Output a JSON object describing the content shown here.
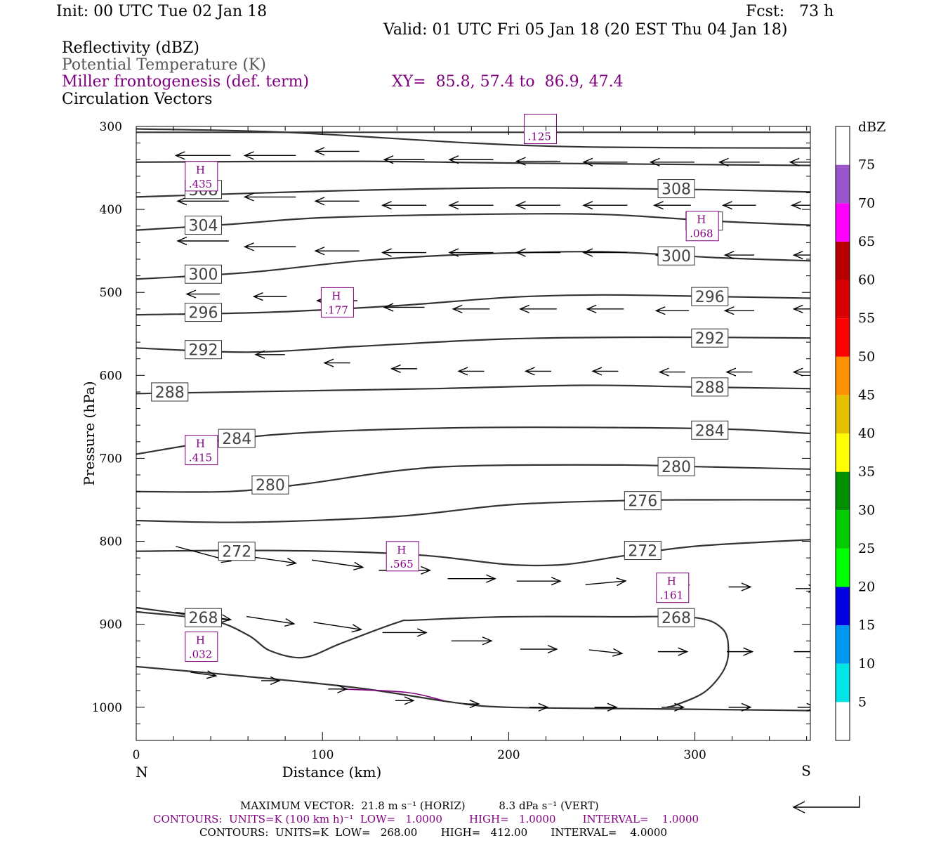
{
  "header": {
    "init": "Init: 00 UTC Tue 02 Jan 18",
    "fcst": "Fcst:   73 h",
    "valid": "Valid: 01 UTC Fri 05 Jan 18 (20 EST Thu 04 Jan 18)",
    "fields": [
      {
        "text": "Reflectivity (dBZ)",
        "color": "#000000"
      },
      {
        "text": "Potential Temperature (K)",
        "color": "#555555"
      },
      {
        "text": "Miller frontogenesis (def. term)",
        "color": "#800080"
      },
      {
        "text": "Circulation Vectors",
        "color": "#000000"
      }
    ],
    "xy": "XY=  85.8, 57.4 to  86.9, 47.4"
  },
  "chart_data": {
    "type": "cross-section",
    "xlabel": "Distance (km)",
    "ylabel": "Pressure (hPa)",
    "xlim": [
      0,
      362
    ],
    "ylim": [
      1040,
      300
    ],
    "xticks": [
      0,
      100,
      200,
      300
    ],
    "yticks": [
      300,
      400,
      500,
      600,
      700,
      800,
      900,
      1000
    ],
    "left_end_label": "N",
    "right_end_label": "S",
    "colorbar": {
      "title": "dBZ",
      "levels": [
        5,
        10,
        15,
        20,
        25,
        30,
        35,
        40,
        45,
        50,
        55,
        60,
        65,
        70,
        75
      ],
      "colors": [
        "#ffffff",
        "#00e5e5",
        "#0099f0",
        "#0000e0",
        "#00ff00",
        "#00cc00",
        "#009000",
        "#ffff00",
        "#e6c000",
        "#ff9000",
        "#ff0000",
        "#d80000",
        "#b80000",
        "#ff00ff",
        "#9955cc",
        "#ffffff"
      ]
    },
    "theta_contours": [
      {
        "label": "308",
        "points": [
          [
            0,
            385
          ],
          [
            100,
            378
          ],
          [
            200,
            374
          ],
          [
            300,
            376
          ],
          [
            362,
            379
          ]
        ],
        "labels": [
          [
            36,
            376
          ],
          [
            290,
            375
          ]
        ]
      },
      {
        "label": "304",
        "points": [
          [
            0,
            425
          ],
          [
            50,
            418
          ],
          [
            100,
            410
          ],
          [
            180,
            406
          ],
          [
            250,
            406
          ],
          [
            310,
            414
          ],
          [
            362,
            419
          ]
        ],
        "labels": [
          [
            36,
            419
          ],
          [
            305,
            414
          ]
        ]
      },
      {
        "label": "300",
        "points": [
          [
            0,
            484
          ],
          [
            60,
            476
          ],
          [
            120,
            462
          ],
          [
            180,
            454
          ],
          [
            250,
            451
          ],
          [
            310,
            458
          ],
          [
            362,
            462
          ]
        ],
        "labels": [
          [
            36,
            478
          ],
          [
            290,
            456
          ]
        ]
      },
      {
        "label": "296",
        "points": [
          [
            0,
            527
          ],
          [
            70,
            524
          ],
          [
            140,
            516
          ],
          [
            200,
            506
          ],
          [
            250,
            503
          ],
          [
            310,
            505
          ],
          [
            362,
            507
          ]
        ],
        "labels": [
          [
            36,
            524
          ],
          [
            308,
            505
          ]
        ]
      },
      {
        "label": "292",
        "points": [
          [
            0,
            567
          ],
          [
            60,
            572
          ],
          [
            120,
            565
          ],
          [
            200,
            556
          ],
          [
            280,
            554
          ],
          [
            362,
            555
          ]
        ],
        "labels": [
          [
            36,
            569
          ],
          [
            308,
            555
          ]
        ]
      },
      {
        "label": "288",
        "points": [
          [
            0,
            622
          ],
          [
            80,
            619
          ],
          [
            160,
            616
          ],
          [
            240,
            612
          ],
          [
            300,
            614
          ],
          [
            362,
            616
          ]
        ],
        "labels": [
          [
            18,
            620
          ],
          [
            308,
            614
          ]
        ]
      },
      {
        "label": "284",
        "points": [
          [
            0,
            695
          ],
          [
            50,
            677
          ],
          [
            100,
            668
          ],
          [
            180,
            663
          ],
          [
            260,
            663
          ],
          [
            320,
            665
          ],
          [
            362,
            670
          ]
        ],
        "labels": [
          [
            54,
            676
          ],
          [
            308,
            666
          ]
        ]
      },
      {
        "label": "280",
        "points": [
          [
            0,
            740
          ],
          [
            50,
            740
          ],
          [
            90,
            731
          ],
          [
            140,
            715
          ],
          [
            180,
            709
          ],
          [
            260,
            708
          ],
          [
            300,
            710
          ],
          [
            362,
            713
          ]
        ],
        "labels": [
          [
            72,
            732
          ],
          [
            290,
            710
          ]
        ]
      },
      {
        "label": "276",
        "points": [
          [
            0,
            775
          ],
          [
            60,
            777
          ],
          [
            140,
            770
          ],
          [
            200,
            756
          ],
          [
            260,
            751
          ],
          [
            300,
            750
          ],
          [
            362,
            750
          ]
        ],
        "labels": [
          [
            272,
            751
          ]
        ]
      },
      {
        "label": "272",
        "points": [
          [
            0,
            812
          ],
          [
            60,
            811
          ],
          [
            120,
            813
          ],
          [
            160,
            818
          ],
          [
            200,
            828
          ],
          [
            230,
            828
          ],
          [
            260,
            818
          ],
          [
            300,
            806
          ],
          [
            362,
            798
          ]
        ],
        "labels": [
          [
            54,
            812
          ],
          [
            272,
            811
          ]
        ]
      },
      {
        "label": "268",
        "points": [
          [
            0,
            885
          ],
          [
            40,
            895
          ],
          [
            60,
            913
          ],
          [
            72,
            932
          ],
          [
            90,
            940
          ],
          [
            110,
            923
          ],
          [
            140,
            898
          ],
          [
            150,
            895
          ],
          [
            200,
            891
          ],
          [
            260,
            891
          ],
          [
            300,
            892
          ],
          [
            315,
            906
          ],
          [
            318,
            933
          ],
          [
            315,
            957
          ],
          [
            305,
            982
          ],
          [
            290,
            997
          ],
          [
            285,
            1000
          ]
        ],
        "labels": [
          [
            36,
            892
          ],
          [
            290,
            892
          ]
        ]
      },
      {
        "label": "",
        "points": [
          [
            0,
            880
          ],
          [
            30,
            889
          ],
          [
            50,
            895
          ]
        ],
        "labels": []
      },
      {
        "label": "",
        "points": [
          [
            0,
            307
          ],
          [
            100,
            307
          ],
          [
            150,
            307
          ],
          [
            362,
            307
          ]
        ],
        "labels": []
      },
      {
        "label": "",
        "points": [
          [
            0,
            303
          ],
          [
            80,
            307
          ],
          [
            180,
            320
          ],
          [
            250,
            325
          ],
          [
            362,
            326
          ]
        ],
        "labels": []
      },
      {
        "label": "",
        "points": [
          [
            0,
            343
          ],
          [
            120,
            342
          ],
          [
            200,
            344
          ],
          [
            362,
            347
          ]
        ],
        "labels": []
      },
      {
        "label": "",
        "points": [
          [
            0,
            951
          ],
          [
            60,
            963
          ],
          [
            120,
            977
          ],
          [
            170,
            994
          ],
          [
            200,
            1000
          ],
          [
            280,
            1002
          ],
          [
            362,
            1004
          ]
        ],
        "labels": []
      }
    ],
    "frontogenesis_maxima": [
      {
        "text": "H",
        "value": ".435",
        "x": 35,
        "p": 360
      },
      {
        "text": "H",
        "value": ".068",
        "x": 304,
        "p": 420
      },
      {
        "text": "H",
        "value": ".177",
        "x": 108,
        "p": 512
      },
      {
        "text": "H",
        "value": ".415",
        "x": 35,
        "p": 690
      },
      {
        "text": "H",
        "value": ".565",
        "x": 143,
        "p": 818
      },
      {
        "text": "H",
        "value": ".161",
        "x": 288,
        "p": 856
      },
      {
        "text": "H",
        "value": ".032",
        "x": 35,
        "p": 927
      },
      {
        "text": "",
        "value": ".125",
        "x": 217,
        "p": 303
      }
    ],
    "frontogenesis_line": [
      [
        110,
        978
      ],
      [
        145,
        982
      ],
      [
        165,
        992
      ]
    ],
    "vectors": [
      {
        "x": 36,
        "p": 335,
        "u": -30,
        "w": 0
      },
      {
        "x": 72,
        "p": 335,
        "u": -28,
        "w": 0
      },
      {
        "x": 36,
        "p": 390,
        "u": -28,
        "w": 0
      },
      {
        "x": 72,
        "p": 385,
        "u": -28,
        "w": 0
      },
      {
        "x": 36,
        "p": 438,
        "u": -28,
        "w": 0
      },
      {
        "x": 72,
        "p": 445,
        "u": -28,
        "w": 0
      },
      {
        "x": 36,
        "p": 502,
        "u": -18,
        "w": 0
      },
      {
        "x": 72,
        "p": 505,
        "u": -18,
        "w": 0
      },
      {
        "x": 108,
        "p": 510,
        "u": -22,
        "w": 0
      },
      {
        "x": 144,
        "p": 518,
        "u": -22,
        "w": 0
      },
      {
        "x": 36,
        "p": 568,
        "u": -16,
        "w": 0
      },
      {
        "x": 72,
        "p": 575,
        "u": -16,
        "w": 0
      },
      {
        "x": 108,
        "p": 585,
        "u": -14,
        "w": 0
      },
      {
        "x": 144,
        "p": 592,
        "u": -14,
        "w": 0
      },
      {
        "x": 180,
        "p": 595,
        "u": -14,
        "w": 0
      },
      {
        "x": 216,
        "p": 595,
        "u": -14,
        "w": 0
      },
      {
        "x": 252,
        "p": 595,
        "u": -14,
        "w": 0
      },
      {
        "x": 288,
        "p": 596,
        "u": -14,
        "w": 0
      },
      {
        "x": 324,
        "p": 596,
        "u": -14,
        "w": 0
      },
      {
        "x": 360,
        "p": 596,
        "u": -14,
        "w": 0
      },
      {
        "x": 108,
        "p": 330,
        "u": -24,
        "w": 0
      },
      {
        "x": 144,
        "p": 340,
        "u": -22,
        "w": 0
      },
      {
        "x": 180,
        "p": 340,
        "u": -24,
        "w": 0
      },
      {
        "x": 216,
        "p": 342,
        "u": -24,
        "w": 0
      },
      {
        "x": 252,
        "p": 343,
        "u": -24,
        "w": 0
      },
      {
        "x": 288,
        "p": 343,
        "u": -24,
        "w": 0
      },
      {
        "x": 324,
        "p": 343,
        "u": -22,
        "w": 0
      },
      {
        "x": 360,
        "p": 343,
        "u": -18,
        "w": 0
      },
      {
        "x": 108,
        "p": 390,
        "u": -24,
        "w": 0
      },
      {
        "x": 144,
        "p": 395,
        "u": -24,
        "w": 0
      },
      {
        "x": 180,
        "p": 395,
        "u": -24,
        "w": 0
      },
      {
        "x": 216,
        "p": 395,
        "u": -24,
        "w": 0
      },
      {
        "x": 252,
        "p": 395,
        "u": -24,
        "w": 0
      },
      {
        "x": 288,
        "p": 395,
        "u": -20,
        "w": 0
      },
      {
        "x": 324,
        "p": 395,
        "u": -18,
        "w": 0
      },
      {
        "x": 360,
        "p": 395,
        "u": -16,
        "w": 0
      },
      {
        "x": 108,
        "p": 450,
        "u": -24,
        "w": 0
      },
      {
        "x": 144,
        "p": 452,
        "u": -24,
        "w": 0
      },
      {
        "x": 180,
        "p": 452,
        "u": -24,
        "w": 0
      },
      {
        "x": 216,
        "p": 452,
        "u": -24,
        "w": 0
      },
      {
        "x": 252,
        "p": 452,
        "u": -24,
        "w": 0
      },
      {
        "x": 288,
        "p": 455,
        "u": -18,
        "w": 0
      },
      {
        "x": 324,
        "p": 455,
        "u": -16,
        "w": 0
      },
      {
        "x": 360,
        "p": 455,
        "u": -14,
        "w": 0
      },
      {
        "x": 180,
        "p": 520,
        "u": -20,
        "w": 0
      },
      {
        "x": 216,
        "p": 520,
        "u": -20,
        "w": 0
      },
      {
        "x": 252,
        "p": 520,
        "u": -20,
        "w": 0
      },
      {
        "x": 288,
        "p": 522,
        "u": -18,
        "w": 0
      },
      {
        "x": 324,
        "p": 522,
        "u": -16,
        "w": 0
      },
      {
        "x": 360,
        "p": 520,
        "u": -14,
        "w": 0
      },
      {
        "x": 36,
        "p": 815,
        "u": 30,
        "w": 8
      },
      {
        "x": 72,
        "p": 822,
        "u": 28,
        "w": 4
      },
      {
        "x": 108,
        "p": 827,
        "u": 28,
        "w": 4
      },
      {
        "x": 144,
        "p": 835,
        "u": 28,
        "w": 0
      },
      {
        "x": 180,
        "p": 845,
        "u": 26,
        "w": 0
      },
      {
        "x": 216,
        "p": 848,
        "u": 24,
        "w": 0
      },
      {
        "x": 252,
        "p": 850,
        "u": 22,
        "w": -2
      },
      {
        "x": 288,
        "p": 855,
        "u": 18,
        "w": -2
      },
      {
        "x": 324,
        "p": 855,
        "u": 12,
        "w": 0
      },
      {
        "x": 360,
        "p": 857,
        "u": 12,
        "w": 0
      },
      {
        "x": 36,
        "p": 890,
        "u": 30,
        "w": 4
      },
      {
        "x": 72,
        "p": 895,
        "u": 26,
        "w": 4
      },
      {
        "x": 108,
        "p": 902,
        "u": 26,
        "w": 4
      },
      {
        "x": 144,
        "p": 910,
        "u": 24,
        "w": 0
      },
      {
        "x": 180,
        "p": 920,
        "u": 22,
        "w": 0
      },
      {
        "x": 216,
        "p": 930,
        "u": 20,
        "w": 0
      },
      {
        "x": 252,
        "p": 933,
        "u": 18,
        "w": 2
      },
      {
        "x": 288,
        "p": 933,
        "u": 16,
        "w": 0
      },
      {
        "x": 324,
        "p": 933,
        "u": 14,
        "w": 0
      },
      {
        "x": 360,
        "p": 933,
        "u": 14,
        "w": 0
      },
      {
        "x": 36,
        "p": 960,
        "u": 14,
        "w": 2
      },
      {
        "x": 72,
        "p": 968,
        "u": 10,
        "w": 0
      },
      {
        "x": 108,
        "p": 978,
        "u": 10,
        "w": 0
      },
      {
        "x": 144,
        "p": 992,
        "u": 10,
        "w": 0
      },
      {
        "x": 180,
        "p": 996,
        "u": 8,
        "w": 0
      },
      {
        "x": 216,
        "p": 1000,
        "u": 10,
        "w": 0
      },
      {
        "x": 252,
        "p": 1000,
        "u": 12,
        "w": 0
      },
      {
        "x": 288,
        "p": 1000,
        "u": 12,
        "w": 0
      },
      {
        "x": 324,
        "p": 1000,
        "u": 12,
        "w": 0
      },
      {
        "x": 360,
        "p": 1000,
        "u": 10,
        "w": 0
      }
    ]
  },
  "footer": {
    "max_vector": "MAXIMUM VECTOR:  21.8 m s⁻¹ (HORIZ)          8.3 dPa s⁻¹ (VERT)",
    "contours_purple": "CONTOURS:  UNITS=K (100 km h)⁻¹  LOW=   1.0000        HIGH=   1.0000        INTERVAL=    1.0000",
    "contours_black": "CONTOURS:  UNITS=K  LOW=   268.00       HIGH=   412.00       INTERVAL=    4.0000"
  }
}
